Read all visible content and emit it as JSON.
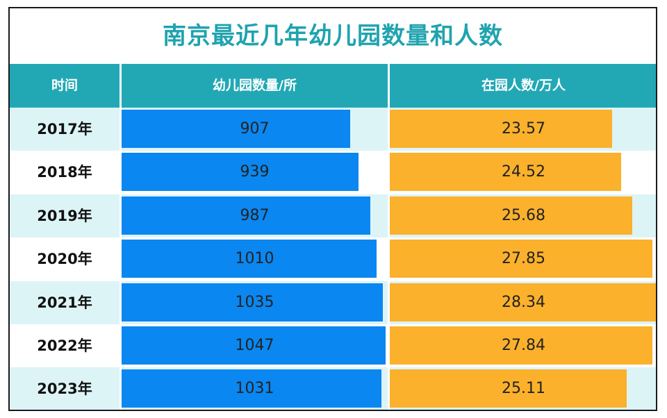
{
  "title": "南京最近几年幼儿园数量和人数",
  "header": {
    "col_year": "时间",
    "col_count": "幼儿园数量/所",
    "col_people": "在园人数/万人"
  },
  "colors": {
    "title": "#1FA3AE",
    "header_bg": "#22A8B5",
    "row_light": "#DDF4F7",
    "row_white": "#FFFFFF",
    "count_bar": "#0A87F0",
    "people_bar": "#FBB12B"
  },
  "chart_data": {
    "type": "bar",
    "orientation": "horizontal",
    "categories": [
      "2017年",
      "2018年",
      "2019年",
      "2020年",
      "2021年",
      "2022年",
      "2023年"
    ],
    "series": [
      {
        "name": "幼儿园数量/所",
        "values": [
          "907",
          "939",
          "987",
          "1010",
          "1035",
          "1047",
          "1031"
        ]
      },
      {
        "name": "在园人数/万人",
        "values": [
          "23.57",
          "24.52",
          "25.68",
          "27.85",
          "28.34",
          "27.84",
          "25.11"
        ]
      }
    ]
  }
}
